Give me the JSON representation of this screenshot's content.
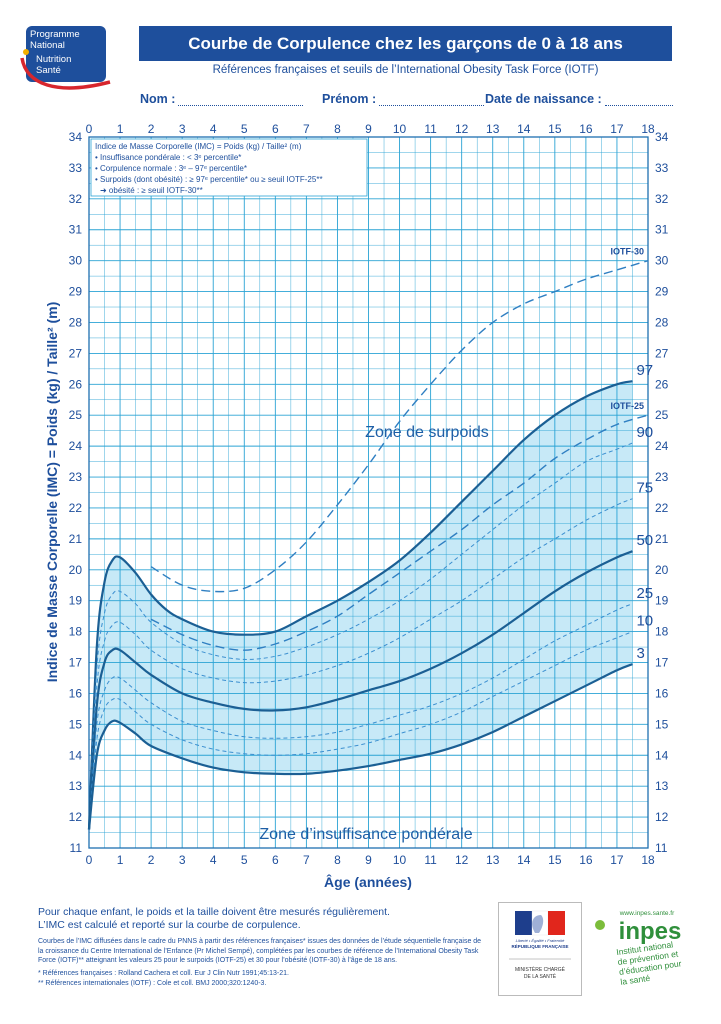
{
  "logo_pnns": {
    "line1": "Programme",
    "line2": "National",
    "line3": "Nutrition",
    "line4": "Santé"
  },
  "header": {
    "title": "Courbe de Corpulence chez les garçons de 0 à 18 ans",
    "subtitle": "Références françaises et seuils de l’International Obesity Task Force (IOTF)",
    "name_label": "Nom :",
    "firstname_label": "Prénom :",
    "birthdate_label": "Date de naissance :"
  },
  "chart_data": {
    "type": "line",
    "xlabel": "Âge (années)",
    "ylabel": "Indice de Masse Corporelle (IMC) = Poids (kg) / Taille² (m)",
    "xlim": [
      0,
      18
    ],
    "ylim": [
      11,
      34
    ],
    "x_ticks": [
      "0",
      "1",
      "2",
      "3",
      "4",
      "5",
      "6",
      "7",
      "8",
      "9",
      "10",
      "11",
      "12",
      "13",
      "14",
      "15",
      "16",
      "17",
      "18"
    ],
    "y_ticks": [
      "11",
      "12",
      "13",
      "14",
      "15",
      "16",
      "17",
      "18",
      "19",
      "20",
      "21",
      "22",
      "23",
      "24",
      "25",
      "26",
      "27",
      "28",
      "29",
      "30",
      "31",
      "32",
      "33",
      "34"
    ],
    "grid": true,
    "legend_box": {
      "line1": "Indice de Masse Corporelle (IMC) = Poids (kg) / Taille² (m)",
      "line2": "• Insuffisance pondérale : < 3ᵉ percentile*",
      "line3": "• Corpulence normale : 3ᵉ – 97ᵉ percentile*",
      "line4": "• Surpoids (dont obésité) : ≥ 97ᵉ percentile* ou ≥ seuil IOTF-25**",
      "line5": "➜ obésité : ≥ seuil IOTF-30**"
    },
    "annotations": {
      "zone_overweight": "Zone de surpoids",
      "zone_underweight": "Zone d’insuffisance pondérale"
    },
    "series": [
      {
        "name": "97",
        "style": "solid",
        "x": [
          0,
          0.25,
          0.5,
          0.75,
          1,
          1.5,
          2,
          2.5,
          3,
          4,
          5,
          6,
          7,
          8,
          9,
          10,
          11,
          12,
          13,
          14,
          15,
          16,
          17,
          17.5
        ],
        "values": [
          11.6,
          17.5,
          19.6,
          20.3,
          20.4,
          19.9,
          19.2,
          18.7,
          18.4,
          18.0,
          17.9,
          18.0,
          18.5,
          19.0,
          19.6,
          20.3,
          21.2,
          22.2,
          23.2,
          24.2,
          25.0,
          25.6,
          26.0,
          26.1
        ]
      },
      {
        "name": "IOTF-25",
        "style": "dashed",
        "x": [
          2,
          3,
          4,
          5,
          6,
          7,
          8,
          9,
          10,
          11,
          12,
          13,
          14,
          15,
          16,
          17,
          18
        ],
        "values": [
          18.4,
          17.9,
          17.55,
          17.4,
          17.6,
          18.0,
          18.5,
          19.2,
          19.9,
          20.6,
          21.3,
          22.1,
          22.8,
          23.6,
          24.2,
          24.7,
          25.0
        ]
      },
      {
        "name": "90",
        "style": "dashed-thin",
        "x": [
          0,
          0.25,
          0.5,
          0.75,
          1,
          1.5,
          2,
          3,
          4,
          5,
          6,
          7,
          8,
          9,
          10,
          11,
          12,
          13,
          14,
          15,
          16,
          17,
          17.5
        ],
        "values": [
          11.6,
          16.8,
          18.6,
          19.2,
          19.3,
          18.9,
          18.3,
          17.6,
          17.25,
          17.1,
          17.2,
          17.5,
          17.9,
          18.4,
          19.0,
          19.7,
          20.5,
          21.3,
          22.1,
          22.8,
          23.5,
          23.9,
          24.1
        ]
      },
      {
        "name": "75",
        "style": "dashed-thin",
        "x": [
          0,
          0.25,
          0.5,
          0.75,
          1,
          1.5,
          2,
          3,
          4,
          5,
          6,
          7,
          8,
          9,
          10,
          11,
          12,
          13,
          14,
          15,
          16,
          17,
          17.5
        ],
        "values": [
          11.6,
          16.2,
          17.7,
          18.2,
          18.3,
          17.9,
          17.4,
          16.8,
          16.5,
          16.35,
          16.4,
          16.6,
          16.9,
          17.3,
          17.8,
          18.4,
          19.0,
          19.7,
          20.4,
          21.0,
          21.6,
          22.1,
          22.3
        ]
      },
      {
        "name": "50",
        "style": "solid",
        "x": [
          0,
          0.25,
          0.5,
          0.75,
          1,
          1.5,
          2,
          3,
          4,
          5,
          6,
          7,
          8,
          9,
          10,
          11,
          12,
          13,
          14,
          15,
          16,
          17,
          17.5
        ],
        "values": [
          11.6,
          15.6,
          17.0,
          17.4,
          17.4,
          17.0,
          16.6,
          16.0,
          15.7,
          15.5,
          15.45,
          15.55,
          15.8,
          16.1,
          16.4,
          16.8,
          17.3,
          17.9,
          18.6,
          19.3,
          19.9,
          20.4,
          20.6
        ]
      },
      {
        "name": "25",
        "style": "dashed-thin",
        "x": [
          0,
          0.25,
          0.5,
          0.75,
          1,
          1.5,
          2,
          3,
          4,
          5,
          6,
          7,
          8,
          9,
          10,
          11,
          12,
          13,
          14,
          15,
          16,
          17,
          17.5
        ],
        "values": [
          11.6,
          15.0,
          16.1,
          16.5,
          16.5,
          16.1,
          15.7,
          15.1,
          14.8,
          14.6,
          14.55,
          14.6,
          14.75,
          15.0,
          15.3,
          15.6,
          16.0,
          16.5,
          17.1,
          17.7,
          18.2,
          18.7,
          18.9
        ]
      },
      {
        "name": "10",
        "style": "dashed-thin",
        "x": [
          0,
          0.25,
          0.5,
          0.75,
          1,
          1.5,
          2,
          3,
          4,
          5,
          6,
          7,
          8,
          9,
          10,
          11,
          12,
          13,
          14,
          15,
          16,
          17,
          17.5
        ],
        "values": [
          11.6,
          14.5,
          15.5,
          15.8,
          15.8,
          15.4,
          15.0,
          14.5,
          14.2,
          14.05,
          14.0,
          14.05,
          14.2,
          14.4,
          14.7,
          15.0,
          15.4,
          15.9,
          16.4,
          16.9,
          17.4,
          17.8,
          18.0
        ]
      },
      {
        "name": "3",
        "style": "solid",
        "x": [
          0,
          0.25,
          0.5,
          0.75,
          1,
          1.5,
          2,
          3,
          4,
          5,
          6,
          7,
          8,
          9,
          10,
          11,
          12,
          13,
          14,
          15,
          16,
          17,
          17.5
        ],
        "values": [
          11.6,
          14.0,
          14.8,
          15.1,
          15.05,
          14.7,
          14.3,
          13.9,
          13.6,
          13.45,
          13.4,
          13.4,
          13.5,
          13.65,
          13.85,
          14.05,
          14.35,
          14.75,
          15.25,
          15.75,
          16.25,
          16.75,
          16.95
        ]
      },
      {
        "name": "IOTF-30",
        "style": "dashed",
        "x": [
          2,
          3,
          4,
          5,
          6,
          7,
          8,
          9,
          10,
          11,
          12,
          13,
          14,
          15,
          16,
          17,
          18
        ],
        "values": [
          20.1,
          19.5,
          19.3,
          19.4,
          20.0,
          20.9,
          22.1,
          23.4,
          24.8,
          26.0,
          27.1,
          28.0,
          28.6,
          29.0,
          29.4,
          29.7,
          30.0
        ]
      }
    ]
  },
  "footer": {
    "main_line1": "Pour chaque enfant, le poids et la taille doivent être mesurés régulièrement.",
    "main_line2": "L’IMC est calculé et reporté sur la courbe de corpulence.",
    "ref_line1": "Courbes de l’IMC diffusées dans le cadre du PNNS à partir des références françaises* issues des données de l’étude séquentielle française de",
    "ref_line2": "la croissance du Centre International de l’Enfance (Pr Michel Sempé), complétées par les courbes de référence de l’International Obesity Task",
    "ref_line3": "Force (IOTF)** atteignant les valeurs 25 pour le surpoids (IOTF-25) et 30 pour l’obésité (IOTF-30) à l’âge de 18 ans.",
    "cite1": "* Références françaises : Rolland Cachera et coll. Eur J Clin Nutr 1991;45:13-21.",
    "cite2": "** Références internationales (IOTF) : Cole et coll. BMJ 2000;320:1240-3."
  },
  "logo_rf": {
    "motto": "Liberté • Égalité • Fraternité",
    "name": "RÉPUBLIQUE FRANÇAISE",
    "ministry1": "MINISTÈRE CHARGÉ",
    "ministry2": "DE LA SANTÉ"
  },
  "logo_inpes": {
    "url": "www.inpes.sante.fr",
    "brand": "inpes",
    "line1": "Institut national",
    "line2": "de prévention et",
    "line3": "d’éducation pour",
    "line4": "la santé"
  },
  "colors": {
    "brand": "#1e4f9c",
    "grid": "#2aa3d4",
    "zone_fill": "#c7e9f7",
    "curve": "#1b5f94"
  }
}
